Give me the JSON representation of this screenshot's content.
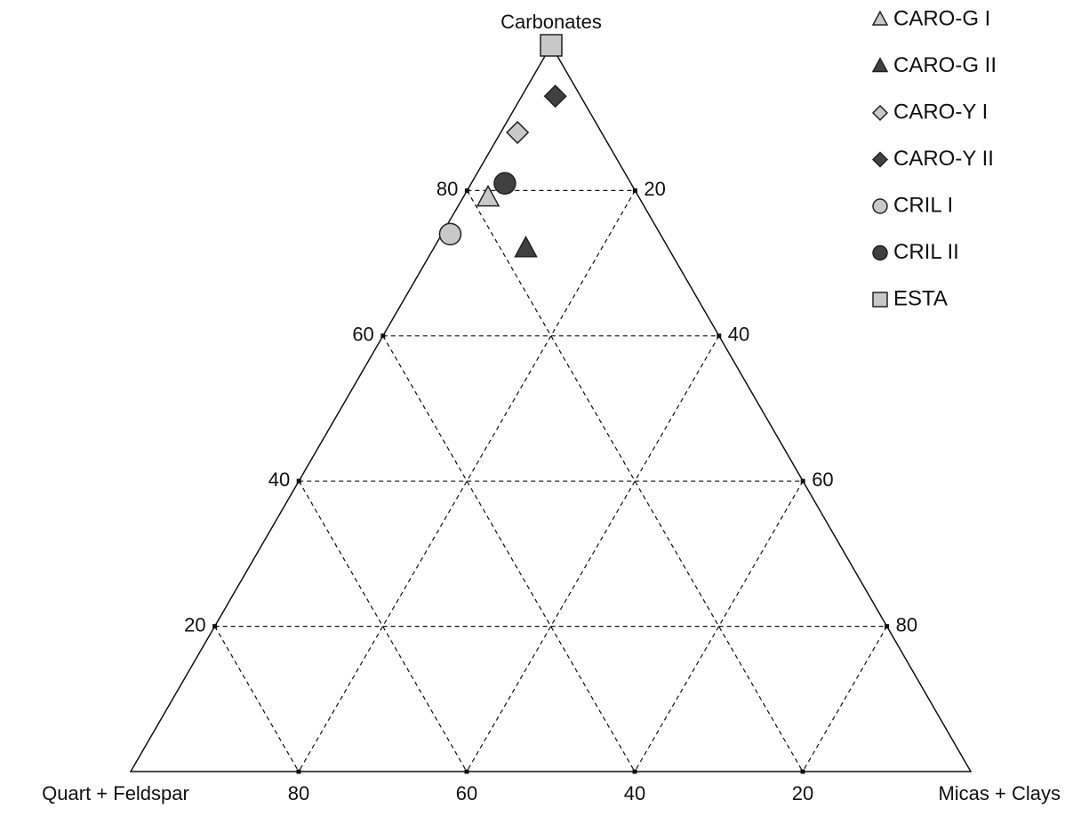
{
  "chart_data": {
    "type": "ternary",
    "axes": [
      {
        "label": "Carbonates",
        "ticks": [
          20,
          40,
          60,
          80
        ]
      },
      {
        "label": "Quart + Feldspar",
        "ticks": [
          20,
          40,
          60,
          80
        ]
      },
      {
        "label": "Micas + Clays",
        "ticks": [
          20,
          40,
          60,
          80
        ]
      }
    ],
    "grid": true,
    "legend": "top-right",
    "series": [
      {
        "name": "CARO-G I",
        "shape": "triangle",
        "color": "#c8c8c8",
        "values": [
          79,
          18,
          3
        ]
      },
      {
        "name": "CARO-G II",
        "shape": "triangle",
        "color": "#404040",
        "values": [
          72,
          17,
          11
        ]
      },
      {
        "name": "CARO-Y I",
        "shape": "diamond",
        "color": "#c8c8c8",
        "values": [
          88,
          10,
          2
        ]
      },
      {
        "name": "CARO-Y II",
        "shape": "diamond",
        "color": "#404040",
        "values": [
          93,
          3,
          4
        ]
      },
      {
        "name": "CRIL I",
        "shape": "circle",
        "color": "#c8c8c8",
        "values": [
          74,
          25,
          1
        ]
      },
      {
        "name": "CRIL II",
        "shape": "circle",
        "color": "#404040",
        "values": [
          81,
          15,
          4
        ]
      },
      {
        "name": "ESTA",
        "shape": "square",
        "color": "#c8c8c8",
        "values": [
          100,
          0,
          0
        ]
      }
    ]
  }
}
